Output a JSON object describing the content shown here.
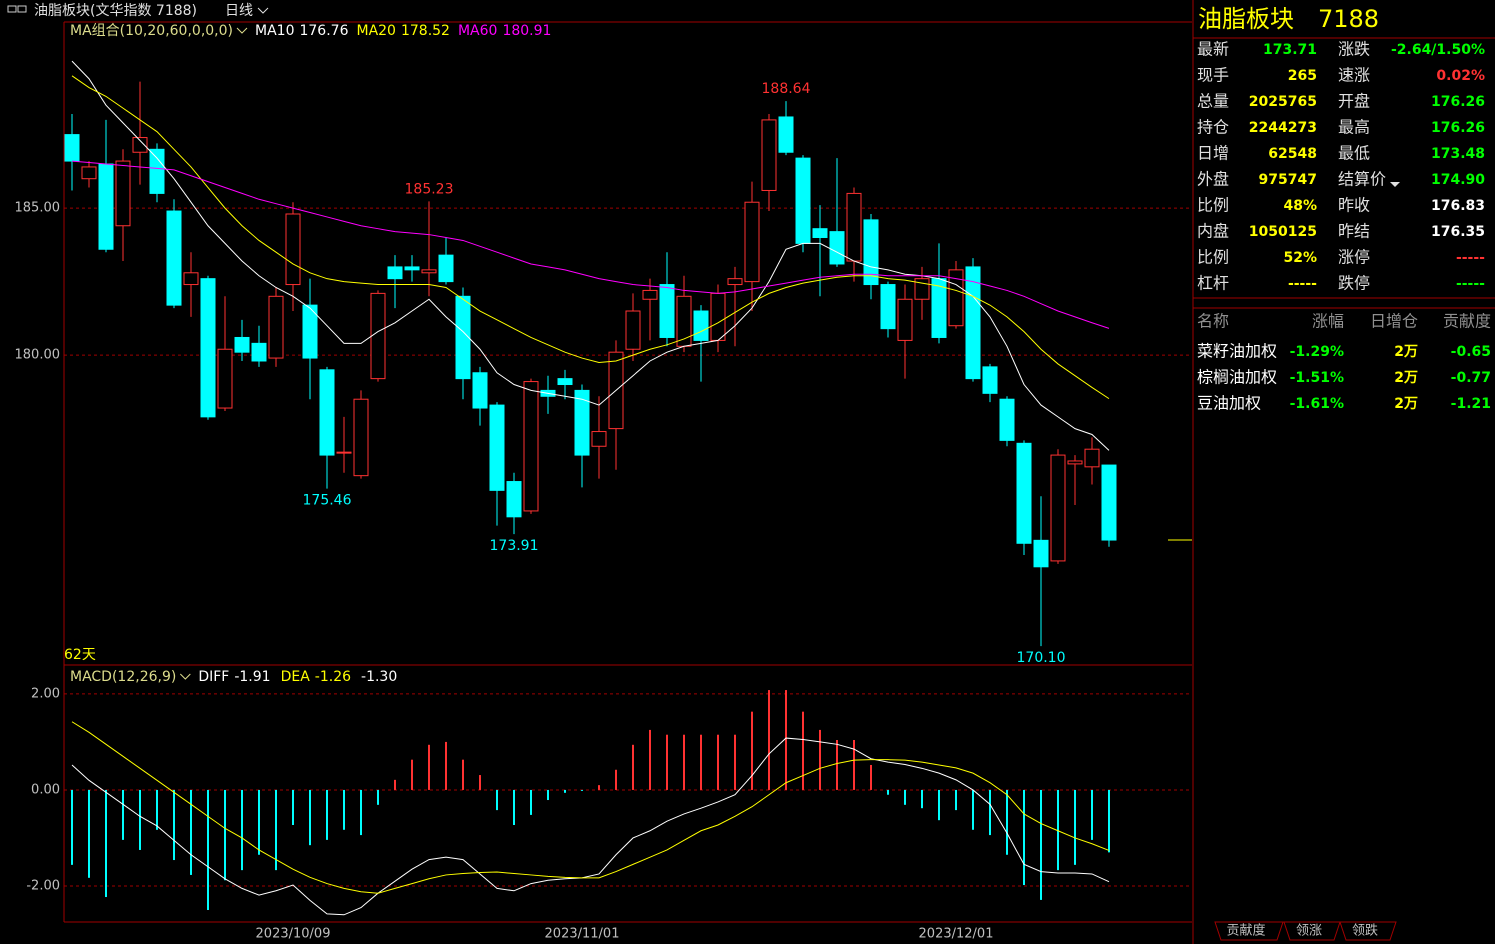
{
  "header": {
    "title": "油脂板块(文华指数 7188)",
    "period": "日线"
  },
  "chart_data": [
    {
      "type": "candlestick",
      "indicator": "MA组合(10,20,60,0,0,0)",
      "period_label": "62天",
      "categories": [
        null,
        null,
        null,
        null,
        null,
        null,
        null,
        null,
        null,
        null,
        null,
        null,
        null,
        "2023/10/09",
        null,
        null,
        null,
        null,
        null,
        null,
        null,
        null,
        null,
        null,
        null,
        null,
        null,
        null,
        null,
        null,
        "2023/11/01",
        null,
        null,
        null,
        null,
        null,
        null,
        null,
        null,
        null,
        null,
        null,
        null,
        null,
        null,
        null,
        null,
        null,
        null,
        null,
        null,
        null,
        "2023/12/01",
        null,
        null,
        null,
        null,
        null,
        null,
        null,
        null,
        null
      ],
      "open": [
        187.5,
        186.0,
        186.5,
        184.4,
        186.9,
        187.0,
        184.9,
        182.4,
        182.6,
        178.2,
        180.6,
        180.4,
        179.9,
        182.4,
        181.7,
        179.5,
        176.7,
        175.9,
        179.2,
        183.0,
        183.0,
        182.8,
        183.4,
        182.0,
        179.4,
        178.3,
        175.7,
        174.7,
        178.8,
        179.2,
        178.8,
        176.9,
        177.5,
        180.2,
        181.9,
        182.4,
        180.3,
        181.5,
        180.5,
        182.4,
        182.5,
        185.6,
        188.1,
        186.7,
        184.3,
        184.2,
        183.2,
        184.6,
        182.4,
        180.5,
        181.9,
        182.6,
        181.0,
        183.0,
        179.6,
        178.5,
        177.0,
        173.7,
        173.0,
        176.3,
        176.2,
        176.26
      ],
      "high": [
        188.2,
        186.6,
        188.0,
        187.0,
        189.3,
        187.2,
        185.3,
        183.5,
        182.7,
        182.0,
        181.2,
        181.0,
        182.3,
        185.2,
        182.6,
        179.6,
        177.9,
        178.8,
        182.2,
        183.4,
        183.4,
        185.23,
        184.0,
        182.3,
        179.6,
        178.4,
        176.0,
        179.2,
        179.3,
        179.5,
        179.0,
        178.6,
        180.5,
        182.1,
        182.6,
        183.5,
        182.7,
        181.7,
        182.4,
        183.0,
        185.9,
        188.2,
        188.64,
        186.8,
        185.1,
        186.7,
        185.7,
        184.8,
        182.5,
        182.4,
        183.0,
        183.8,
        183.2,
        183.3,
        179.7,
        178.6,
        177.1,
        175.2,
        176.8,
        176.6,
        177.2,
        176.26
      ],
      "low": [
        185.6,
        185.7,
        183.5,
        183.2,
        185.8,
        185.2,
        181.6,
        181.3,
        177.8,
        178.1,
        179.8,
        179.6,
        179.6,
        181.5,
        178.5,
        175.46,
        176.0,
        175.8,
        179.1,
        181.6,
        182.5,
        182.0,
        182.4,
        178.5,
        177.6,
        174.2,
        173.91,
        174.6,
        178.0,
        178.5,
        175.5,
        175.8,
        176.1,
        179.8,
        180.5,
        180.3,
        180.1,
        179.1,
        180.1,
        180.3,
        181.5,
        184.9,
        186.8,
        183.5,
        182.0,
        183.0,
        182.5,
        181.9,
        180.6,
        179.2,
        181.2,
        180.4,
        180.9,
        179.1,
        178.4,
        176.9,
        173.2,
        170.1,
        172.9,
        174.9,
        175.6,
        173.48
      ],
      "close": [
        186.6,
        186.4,
        183.6,
        186.6,
        187.4,
        185.5,
        181.7,
        182.8,
        177.9,
        180.2,
        180.1,
        179.8,
        182.0,
        184.8,
        179.9,
        176.6,
        176.7,
        178.5,
        182.1,
        182.6,
        182.9,
        182.9,
        182.5,
        179.2,
        178.2,
        175.4,
        174.5,
        179.1,
        178.6,
        179.0,
        176.6,
        177.4,
        180.1,
        181.5,
        182.2,
        180.6,
        182.0,
        180.5,
        182.1,
        182.6,
        185.2,
        188.0,
        186.9,
        183.8,
        184.0,
        183.1,
        185.5,
        182.4,
        180.9,
        181.9,
        182.6,
        180.6,
        182.9,
        179.2,
        178.7,
        177.1,
        173.6,
        172.8,
        176.6,
        176.4,
        176.8,
        173.71
      ],
      "up_color": "#ff3232",
      "down_color": "#00ffff",
      "series": [
        {
          "name": "MA10",
          "value_label": "176.76",
          "color": "#ffffff",
          "values": [
            190.0,
            189.4,
            188.5,
            187.9,
            187.3,
            186.7,
            186.0,
            185.2,
            184.4,
            183.8,
            183.2,
            182.7,
            182.3,
            182.0,
            181.6,
            181.0,
            180.4,
            180.4,
            180.8,
            181.1,
            181.5,
            181.9,
            181.3,
            180.8,
            180.2,
            179.4,
            179.0,
            178.8,
            178.7,
            178.6,
            178.5,
            178.3,
            178.8,
            179.3,
            179.8,
            180.1,
            180.3,
            180.4,
            180.5,
            181.0,
            181.6,
            182.5,
            183.6,
            183.8,
            183.8,
            183.5,
            183.2,
            183.0,
            182.9,
            182.75,
            182.7,
            182.6,
            182.4,
            182.0,
            181.3,
            180.3,
            179.0,
            178.3,
            177.9,
            177.5,
            177.3,
            176.76
          ]
        },
        {
          "name": "MA20",
          "value_label": "178.52",
          "color": "#ffff00",
          "values": [
            189.5,
            189.1,
            188.8,
            188.4,
            188.0,
            187.6,
            187.0,
            186.4,
            185.7,
            185.0,
            184.4,
            183.9,
            183.5,
            183.1,
            182.8,
            182.6,
            182.5,
            182.45,
            182.4,
            182.4,
            182.4,
            182.4,
            182.3,
            181.9,
            181.5,
            181.2,
            180.9,
            180.6,
            180.35,
            180.1,
            179.9,
            179.75,
            179.8,
            180.0,
            180.2,
            180.35,
            180.55,
            180.8,
            181.1,
            181.45,
            181.8,
            182.1,
            182.3,
            182.45,
            182.55,
            182.65,
            182.7,
            182.7,
            182.6,
            182.55,
            182.45,
            182.35,
            182.2,
            182.0,
            181.7,
            181.3,
            180.8,
            180.2,
            179.7,
            179.3,
            178.9,
            178.52
          ]
        },
        {
          "name": "MA60",
          "value_label": "180.91",
          "color": "#ff00ff",
          "values": [
            186.6,
            186.55,
            186.5,
            186.45,
            186.4,
            186.35,
            186.3,
            186.1,
            185.9,
            185.7,
            185.5,
            185.3,
            185.15,
            185.0,
            184.85,
            184.7,
            184.55,
            184.4,
            184.3,
            184.2,
            184.15,
            184.1,
            184.0,
            183.9,
            183.7,
            183.5,
            183.3,
            183.1,
            183.0,
            182.9,
            182.75,
            182.6,
            182.5,
            182.4,
            182.35,
            182.3,
            182.2,
            182.15,
            182.1,
            182.15,
            182.25,
            182.35,
            182.45,
            182.55,
            182.65,
            182.7,
            182.75,
            182.75,
            182.7,
            182.7,
            182.7,
            182.7,
            182.6,
            182.5,
            182.35,
            182.2,
            182.0,
            181.75,
            181.5,
            181.3,
            181.1,
            180.91
          ]
        }
      ],
      "annotations": [
        {
          "index": 42,
          "label": "188.64",
          "color": "#ff3232"
        },
        {
          "index": 21,
          "label": "185.23",
          "color": "#ff3232"
        },
        {
          "index": 15,
          "label": "175.46",
          "color": "#00ffff"
        },
        {
          "index": 26,
          "label": "173.91",
          "color": "#00ffff"
        },
        {
          "index": 57,
          "label": "170.10",
          "color": "#00ffff"
        }
      ],
      "ylim": [
        169.46,
        191.33
      ],
      "yticks": [
        {
          "value": 180,
          "label": "180.00"
        },
        {
          "value": 185,
          "label": "185.00"
        }
      ],
      "grid": true
    },
    {
      "type": "bar",
      "title": "MACD(12,26,9)",
      "value_label": "-1.30",
      "values": [
        -1.56,
        -1.83,
        -2.23,
        -1.04,
        -1.25,
        -0.83,
        -1.46,
        -1.77,
        -2.5,
        -1.88,
        -1.67,
        -1.35,
        -1.67,
        -0.73,
        -1.15,
        -1.04,
        -0.83,
        -0.94,
        -0.31,
        0.21,
        0.63,
        0.94,
        1.0,
        0.63,
        0.31,
        -0.42,
        -0.73,
        -0.52,
        -0.21,
        -0.06,
        -0.02,
        0.1,
        0.42,
        0.94,
        1.25,
        1.15,
        1.15,
        1.15,
        1.15,
        1.15,
        1.63,
        2.08,
        2.08,
        1.63,
        1.25,
        1.04,
        1.04,
        0.52,
        -0.1,
        -0.31,
        -0.38,
        -0.63,
        -0.42,
        -0.83,
        -0.94,
        -1.35,
        -1.98,
        -2.29,
        -1.67,
        -1.56,
        -1.04,
        -1.3
      ],
      "up_color": "#ff3232",
      "down_color": "#00ffff",
      "series": [
        {
          "name": "DIFF",
          "value_label": "-1.91",
          "color": "#ffffff",
          "values": [
            0.52,
            0.2,
            -0.05,
            -0.3,
            -0.55,
            -0.75,
            -1.05,
            -1.35,
            -1.6,
            -1.85,
            -2.05,
            -2.19,
            -2.1,
            -1.98,
            -2.3,
            -2.58,
            -2.6,
            -2.45,
            -2.15,
            -1.9,
            -1.65,
            -1.45,
            -1.4,
            -1.45,
            -1.75,
            -2.05,
            -2.1,
            -1.95,
            -1.88,
            -1.85,
            -1.83,
            -1.75,
            -1.35,
            -1.0,
            -0.85,
            -0.65,
            -0.5,
            -0.38,
            -0.25,
            -0.1,
            0.3,
            0.75,
            1.08,
            1.05,
            1.0,
            0.95,
            0.85,
            0.65,
            0.58,
            0.53,
            0.45,
            0.35,
            0.21,
            0.0,
            -0.3,
            -0.9,
            -1.55,
            -1.7,
            -1.73,
            -1.73,
            -1.75,
            -1.91
          ]
        },
        {
          "name": "DEA",
          "value_label": "-1.26",
          "color": "#ffff00",
          "values": [
            1.42,
            1.2,
            0.95,
            0.7,
            0.45,
            0.2,
            -0.05,
            -0.3,
            -0.55,
            -0.8,
            -1.0,
            -1.25,
            -1.45,
            -1.65,
            -1.82,
            -1.95,
            -2.05,
            -2.12,
            -2.15,
            -2.05,
            -1.95,
            -1.85,
            -1.77,
            -1.74,
            -1.72,
            -1.71,
            -1.74,
            -1.77,
            -1.8,
            -1.82,
            -1.83,
            -1.83,
            -1.7,
            -1.55,
            -1.4,
            -1.25,
            -1.05,
            -0.85,
            -0.73,
            -0.55,
            -0.35,
            -0.1,
            0.15,
            0.3,
            0.45,
            0.55,
            0.62,
            0.63,
            0.63,
            0.62,
            0.58,
            0.52,
            0.46,
            0.35,
            0.15,
            -0.1,
            -0.5,
            -0.7,
            -0.85,
            -1.0,
            -1.12,
            -1.26
          ]
        }
      ],
      "ylim": [
        -2.75,
        2.56
      ],
      "yticks": [
        {
          "value": 2,
          "label": "2.00"
        },
        {
          "value": 0,
          "label": "0.00"
        },
        {
          "value": -2,
          "label": "-2.00"
        }
      ],
      "grid": true
    }
  ],
  "quote": {
    "title": "油脂板块",
    "code": "7188",
    "rows": [
      [
        "最新",
        "173.71",
        "涨跌",
        "-2.64/1.50%"
      ],
      [
        "现手",
        "265",
        "速涨",
        "0.02%"
      ],
      [
        "总量",
        "2025765",
        "开盘",
        "176.26"
      ],
      [
        "持仓",
        "2244273",
        "最高",
        "176.26"
      ],
      [
        "日增",
        "62548",
        "最低",
        "173.48"
      ],
      [
        "外盘",
        "975747",
        "结算价",
        "174.90"
      ],
      [
        "比例",
        "48%",
        "昨收",
        "176.83"
      ],
      [
        "内盘",
        "1050125",
        "昨结",
        "176.35"
      ],
      [
        "比例",
        "52%",
        "涨停",
        "-----"
      ],
      [
        "杠杆",
        "-----",
        "跌停",
        "-----"
      ]
    ],
    "colors": [
      [
        "#00ff00",
        "#00ff00"
      ],
      [
        "#ffff00",
        "#ff3232"
      ],
      [
        "#ffff00",
        "#00ff00"
      ],
      [
        "#ffff00",
        "#00ff00"
      ],
      [
        "#ffff00",
        "#00ff00"
      ],
      [
        "#ffff00",
        "#00ff00"
      ],
      [
        "#ffff00",
        "#ffffff"
      ],
      [
        "#ffff00",
        "#ffffff"
      ],
      [
        "#ffff00",
        "#ff3232"
      ],
      [
        "#ffff00",
        "#00ff00"
      ]
    ]
  },
  "components": {
    "columns": [
      "名称",
      "涨幅",
      "日增仓",
      "贡献度"
    ],
    "rows": [
      [
        "菜籽油加权",
        "-1.29%",
        "2万",
        "-0.65"
      ],
      [
        "棕榈油加权",
        "-1.51%",
        "2万",
        "-0.77"
      ],
      [
        "豆油加权",
        "-1.61%",
        "2万",
        "-1.21"
      ]
    ],
    "colors": [
      "#ffffff",
      "#00ff00",
      "#ffff00",
      "#00ff00"
    ]
  },
  "tabs": [
    "贡献度",
    "领涨",
    "领跌"
  ]
}
